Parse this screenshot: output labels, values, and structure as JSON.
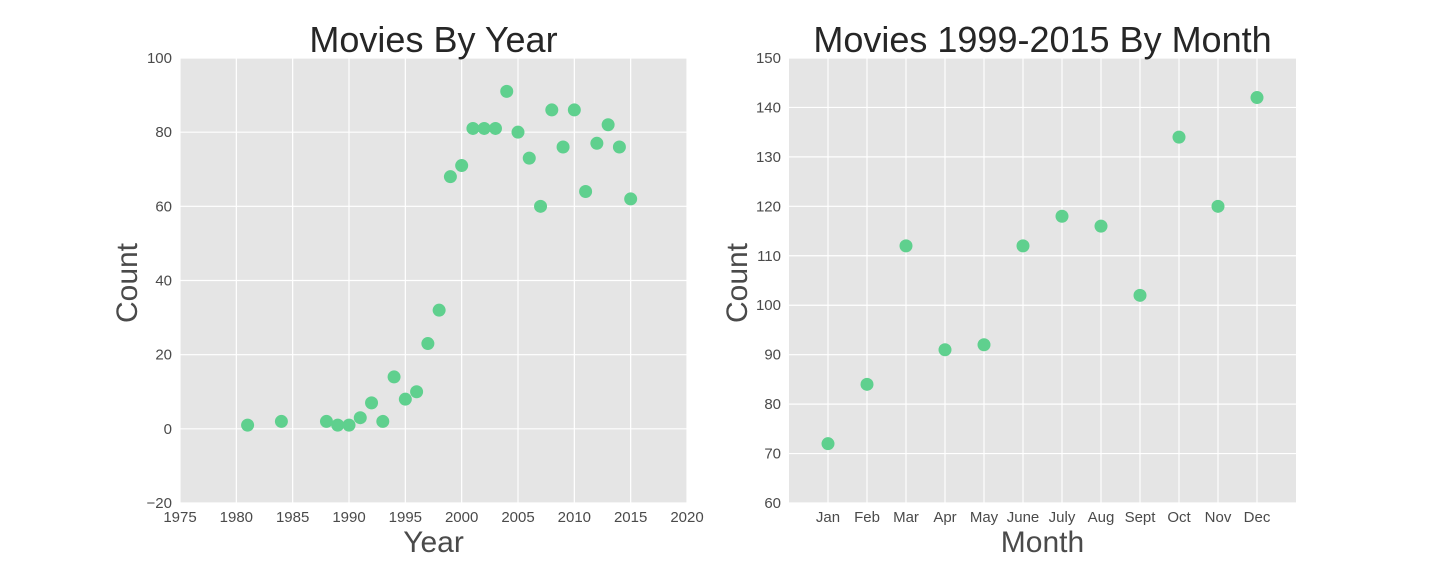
{
  "chart_data": [
    {
      "type": "scatter",
      "title": "Movies By Year",
      "xlabel": "Year",
      "ylabel": "Count",
      "xlim": [
        1975,
        2020
      ],
      "ylim": [
        -20,
        100
      ],
      "xticks": [
        1975,
        1980,
        1985,
        1990,
        1995,
        2000,
        2005,
        2010,
        2015,
        2020
      ],
      "yticks": [
        -20,
        0,
        20,
        40,
        60,
        80,
        100
      ],
      "xtick_labels": [
        "1975",
        "1980",
        "1985",
        "1990",
        "1995",
        "2000",
        "2005",
        "2010",
        "2015",
        "2020"
      ],
      "ytick_labels": [
        "−20",
        "0",
        "20",
        "40",
        "60",
        "80",
        "100"
      ],
      "grid": true,
      "point_color": "#5fd08e",
      "points": [
        {
          "x": 1981,
          "y": 1
        },
        {
          "x": 1984,
          "y": 2
        },
        {
          "x": 1988,
          "y": 2
        },
        {
          "x": 1989,
          "y": 1
        },
        {
          "x": 1990,
          "y": 1
        },
        {
          "x": 1991,
          "y": 3
        },
        {
          "x": 1992,
          "y": 7
        },
        {
          "x": 1993,
          "y": 2
        },
        {
          "x": 1994,
          "y": 14
        },
        {
          "x": 1995,
          "y": 8
        },
        {
          "x": 1996,
          "y": 10
        },
        {
          "x": 1997,
          "y": 23
        },
        {
          "x": 1998,
          "y": 32
        },
        {
          "x": 1999,
          "y": 68
        },
        {
          "x": 2000,
          "y": 71
        },
        {
          "x": 2001,
          "y": 81
        },
        {
          "x": 2002,
          "y": 81
        },
        {
          "x": 2003,
          "y": 81
        },
        {
          "x": 2004,
          "y": 91
        },
        {
          "x": 2005,
          "y": 80
        },
        {
          "x": 2006,
          "y": 73
        },
        {
          "x": 2007,
          "y": 60
        },
        {
          "x": 2008,
          "y": 86
        },
        {
          "x": 2009,
          "y": 76
        },
        {
          "x": 2010,
          "y": 86
        },
        {
          "x": 2011,
          "y": 64
        },
        {
          "x": 2012,
          "y": 77
        },
        {
          "x": 2013,
          "y": 82
        },
        {
          "x": 2014,
          "y": 76
        },
        {
          "x": 2015,
          "y": 62
        }
      ]
    },
    {
      "type": "scatter",
      "title": "Movies 1999-2015 By Month",
      "xlabel": "Month",
      "ylabel": "Count",
      "categories": [
        "Jan",
        "Feb",
        "Mar",
        "Apr",
        "May",
        "June",
        "July",
        "Aug",
        "Sept",
        "Oct",
        "Nov",
        "Dec"
      ],
      "values": [
        72,
        84,
        112,
        91,
        92,
        112,
        118,
        116,
        102,
        134,
        120,
        142
      ],
      "ylim": [
        60,
        150
      ],
      "yticks": [
        60,
        70,
        80,
        90,
        100,
        110,
        120,
        130,
        140,
        150
      ],
      "ytick_labels": [
        "60",
        "70",
        "80",
        "90",
        "100",
        "110",
        "120",
        "130",
        "140",
        "150"
      ],
      "grid": true,
      "point_color": "#5fd08e"
    }
  ]
}
